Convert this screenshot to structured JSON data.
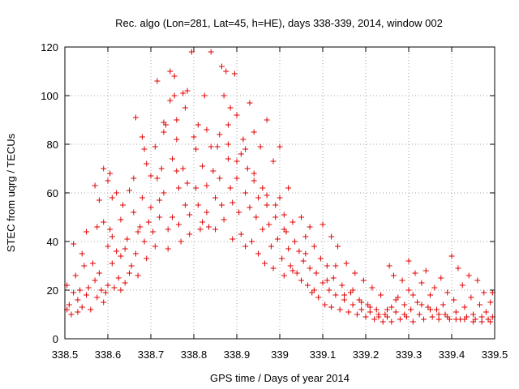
{
  "chart_data": {
    "type": "scatter",
    "title": "Rec. algo (Lon=281, Lat=45, h=HE), days 338-339, 2014, window 002",
    "xlabel": "GPS time / Days of year 2014",
    "ylabel": "STEC from uqrg / TECUs",
    "xlim": [
      338.5,
      339.5
    ],
    "ylim": [
      0,
      120
    ],
    "xticks": [
      338.5,
      338.6,
      338.7,
      338.8,
      338.9,
      339.0,
      339.1,
      339.2,
      339.3,
      339.4,
      339.5
    ],
    "xtick_labels": [
      "338.5",
      "338.6",
      "338.7",
      "338.8",
      "338.9",
      "339",
      "339.1",
      "339.2",
      "339.3",
      "339.4",
      "339.5"
    ],
    "yticks": [
      0,
      20,
      40,
      60,
      80,
      100,
      120
    ],
    "ytick_labels": [
      "0",
      "20",
      "40",
      "60",
      "80",
      "100",
      "120"
    ],
    "grid": true,
    "marker": "plus",
    "marker_color": "#e00000",
    "series": [
      {
        "points": [
          [
            338.505,
            22
          ],
          [
            338.505,
            12
          ],
          [
            338.51,
            14
          ],
          [
            338.515,
            10
          ],
          [
            338.52,
            19
          ],
          [
            338.52,
            39
          ],
          [
            338.525,
            26
          ],
          [
            338.53,
            11
          ],
          [
            338.53,
            16
          ],
          [
            338.535,
            20
          ],
          [
            338.54,
            13
          ],
          [
            338.54,
            35
          ],
          [
            338.545,
            30
          ],
          [
            338.55,
            44
          ],
          [
            338.55,
            18
          ],
          [
            338.555,
            21
          ],
          [
            338.56,
            12
          ],
          [
            338.565,
            31
          ],
          [
            338.57,
            24
          ],
          [
            338.575,
            46
          ],
          [
            338.575,
            17
          ],
          [
            338.58,
            27
          ],
          [
            338.585,
            20
          ],
          [
            338.59,
            70
          ],
          [
            338.59,
            15
          ],
          [
            338.595,
            19
          ],
          [
            338.6,
            65
          ],
          [
            338.6,
            38
          ],
          [
            338.6,
            22
          ],
          [
            338.605,
            68
          ],
          [
            338.605,
            45
          ],
          [
            338.61,
            58
          ],
          [
            338.61,
            31
          ],
          [
            338.615,
            21
          ],
          [
            338.62,
            60
          ],
          [
            338.62,
            36
          ],
          [
            338.625,
            25
          ],
          [
            338.63,
            49
          ],
          [
            338.63,
            20
          ],
          [
            338.635,
            55
          ],
          [
            338.64,
            37
          ],
          [
            338.64,
            23
          ],
          [
            338.645,
            41
          ],
          [
            338.65,
            61
          ],
          [
            338.65,
            27
          ],
          [
            338.655,
            30
          ],
          [
            338.66,
            52
          ],
          [
            338.665,
            91
          ],
          [
            338.665,
            35
          ],
          [
            338.67,
            44
          ],
          [
            338.67,
            26
          ],
          [
            338.675,
            46
          ],
          [
            338.68,
            83
          ],
          [
            338.68,
            58
          ],
          [
            338.685,
            78
          ],
          [
            338.685,
            40
          ],
          [
            338.69,
            33
          ],
          [
            338.695,
            48
          ],
          [
            338.7,
            67
          ],
          [
            338.7,
            54
          ],
          [
            338.705,
            44
          ],
          [
            338.71,
            38
          ],
          [
            338.715,
            106
          ],
          [
            338.715,
            66
          ],
          [
            338.72,
            57
          ],
          [
            338.72,
            50
          ],
          [
            338.725,
            70
          ],
          [
            338.73,
            89
          ],
          [
            338.73,
            60
          ],
          [
            338.735,
            88
          ],
          [
            338.74,
            45
          ],
          [
            338.74,
            37
          ],
          [
            338.745,
            110
          ],
          [
            338.745,
            98
          ],
          [
            338.75,
            74
          ],
          [
            338.75,
            50
          ],
          [
            338.755,
            108
          ],
          [
            338.755,
            100
          ],
          [
            338.76,
            82
          ],
          [
            338.76,
            69
          ],
          [
            338.765,
            62
          ],
          [
            338.765,
            47
          ],
          [
            338.77,
            40
          ],
          [
            338.775,
            101
          ],
          [
            338.775,
            70
          ],
          [
            338.78,
            55
          ],
          [
            338.785,
            102
          ],
          [
            338.785,
            64
          ],
          [
            338.79,
            51
          ],
          [
            338.79,
            43
          ],
          [
            338.795,
            118
          ],
          [
            338.8,
            83
          ],
          [
            338.805,
            78
          ],
          [
            338.805,
            62
          ],
          [
            338.81,
            55
          ],
          [
            338.815,
            45
          ],
          [
            338.82,
            71
          ],
          [
            338.82,
            48
          ],
          [
            338.825,
            100
          ],
          [
            338.83,
            63
          ],
          [
            338.83,
            52
          ],
          [
            338.835,
            46
          ],
          [
            338.84,
            118
          ],
          [
            338.84,
            79
          ],
          [
            338.845,
            69
          ],
          [
            338.85,
            58
          ],
          [
            338.85,
            45
          ],
          [
            338.855,
            79
          ],
          [
            338.86,
            66
          ],
          [
            338.865,
            112
          ],
          [
            338.865,
            55
          ],
          [
            338.87,
            100
          ],
          [
            338.87,
            49
          ],
          [
            338.875,
            110
          ],
          [
            338.88,
            88
          ],
          [
            338.88,
            74
          ],
          [
            338.885,
            95
          ],
          [
            338.885,
            62
          ],
          [
            338.89,
            56
          ],
          [
            338.89,
            41
          ],
          [
            338.895,
            109
          ],
          [
            338.9,
            92
          ],
          [
            338.9,
            66
          ],
          [
            338.905,
            52
          ],
          [
            338.91,
            76
          ],
          [
            338.91,
            43
          ],
          [
            338.915,
            82
          ],
          [
            338.92,
            60
          ],
          [
            338.92,
            38
          ],
          [
            338.925,
            70
          ],
          [
            338.93,
            54
          ],
          [
            338.93,
            97
          ],
          [
            338.935,
            40
          ],
          [
            338.94,
            65
          ],
          [
            338.94,
            85
          ],
          [
            338.945,
            50
          ],
          [
            338.95,
            58
          ],
          [
            338.95,
            35
          ],
          [
            338.955,
            79
          ],
          [
            338.96,
            62
          ],
          [
            338.96,
            45
          ],
          [
            338.965,
            31
          ],
          [
            338.97,
            90
          ],
          [
            338.97,
            55
          ],
          [
            338.975,
            47
          ],
          [
            338.98,
            38
          ],
          [
            338.985,
            73
          ],
          [
            338.985,
            29
          ],
          [
            338.99,
            55
          ],
          [
            338.995,
            41
          ],
          [
            339.0,
            79
          ],
          [
            339.0,
            58
          ],
          [
            339.005,
            33
          ],
          [
            339.01,
            51
          ],
          [
            339.01,
            26
          ],
          [
            339.015,
            44
          ],
          [
            339.02,
            62
          ],
          [
            339.02,
            37
          ],
          [
            339.025,
            30
          ],
          [
            339.03,
            48
          ],
          [
            339.035,
            40
          ],
          [
            339.04,
            27
          ],
          [
            339.045,
            36
          ],
          [
            339.05,
            50
          ],
          [
            339.05,
            24
          ],
          [
            339.055,
            32
          ],
          [
            339.06,
            42
          ],
          [
            339.065,
            22
          ],
          [
            339.07,
            29
          ],
          [
            339.07,
            46
          ],
          [
            339.075,
            19
          ],
          [
            339.08,
            38
          ],
          [
            339.085,
            27
          ],
          [
            339.09,
            17
          ],
          [
            339.095,
            33
          ],
          [
            339.1,
            47
          ],
          [
            339.1,
            23
          ],
          [
            339.105,
            14
          ],
          [
            339.11,
            30
          ],
          [
            339.115,
            20
          ],
          [
            339.12,
            42
          ],
          [
            339.12,
            13
          ],
          [
            339.125,
            25
          ],
          [
            339.13,
            18
          ],
          [
            339.135,
            38
          ],
          [
            339.14,
            12
          ],
          [
            339.145,
            22
          ],
          [
            339.15,
            16
          ],
          [
            339.155,
            31
          ],
          [
            339.16,
            11
          ],
          [
            339.165,
            19
          ],
          [
            339.17,
            14
          ],
          [
            339.175,
            27
          ],
          [
            339.18,
            10
          ],
          [
            339.185,
            16
          ],
          [
            339.19,
            12
          ],
          [
            339.195,
            24
          ],
          [
            339.2,
            9
          ],
          [
            339.205,
            14
          ],
          [
            339.21,
            11
          ],
          [
            339.215,
            21
          ],
          [
            339.22,
            8
          ],
          [
            339.225,
            12
          ],
          [
            339.23,
            10
          ],
          [
            339.235,
            18
          ],
          [
            339.24,
            7
          ],
          [
            339.245,
            10
          ],
          [
            339.25,
            9
          ],
          [
            339.255,
            30
          ],
          [
            339.26,
            13
          ],
          [
            339.26,
            7
          ],
          [
            339.265,
            26
          ],
          [
            339.27,
            11
          ],
          [
            339.275,
            17
          ],
          [
            339.28,
            8
          ],
          [
            339.285,
            24
          ],
          [
            339.29,
            14
          ],
          [
            339.295,
            9
          ],
          [
            339.3,
            32
          ],
          [
            339.3,
            20
          ],
          [
            339.305,
            12
          ],
          [
            339.31,
            7
          ],
          [
            339.315,
            27
          ],
          [
            339.32,
            15
          ],
          [
            339.325,
            10
          ],
          [
            339.33,
            23
          ],
          [
            339.335,
            8
          ],
          [
            339.34,
            28
          ],
          [
            339.345,
            13
          ],
          [
            339.35,
            18
          ],
          [
            339.355,
            9
          ],
          [
            339.36,
            21
          ],
          [
            339.365,
            12
          ],
          [
            339.37,
            8
          ],
          [
            339.375,
            25
          ],
          [
            339.38,
            14
          ],
          [
            339.385,
            10
          ],
          [
            339.39,
            19
          ],
          [
            339.395,
            8
          ],
          [
            339.4,
            34
          ],
          [
            339.405,
            16
          ],
          [
            339.41,
            11
          ],
          [
            339.415,
            29
          ],
          [
            339.42,
            8
          ],
          [
            339.425,
            22
          ],
          [
            339.43,
            13
          ],
          [
            339.435,
            9
          ],
          [
            339.44,
            26
          ],
          [
            339.445,
            17
          ],
          [
            339.45,
            10
          ],
          [
            339.455,
            8
          ],
          [
            339.46,
            24
          ],
          [
            339.465,
            14
          ],
          [
            339.47,
            9
          ],
          [
            339.475,
            19
          ],
          [
            339.48,
            11
          ],
          [
            339.485,
            8
          ],
          [
            339.49,
            15
          ],
          [
            339.495,
            19
          ],
          [
            339.495,
            9
          ],
          [
            338.57,
            63
          ],
          [
            338.58,
            57
          ],
          [
            338.59,
            48
          ],
          [
            338.61,
            42
          ],
          [
            338.63,
            34
          ],
          [
            338.66,
            66
          ],
          [
            338.69,
            72
          ],
          [
            338.71,
            79
          ],
          [
            338.73,
            85
          ],
          [
            338.76,
            90
          ],
          [
            338.78,
            95
          ],
          [
            338.81,
            88
          ],
          [
            338.83,
            86
          ],
          [
            338.86,
            84
          ],
          [
            338.88,
            80
          ],
          [
            338.9,
            73
          ],
          [
            338.92,
            78
          ],
          [
            338.94,
            68
          ],
          [
            338.97,
            59
          ],
          [
            338.99,
            50
          ],
          [
            339.01,
            45
          ],
          [
            339.03,
            28
          ],
          [
            339.06,
            35
          ],
          [
            339.08,
            20
          ],
          [
            339.11,
            24
          ],
          [
            339.13,
            30
          ],
          [
            339.15,
            18
          ],
          [
            339.17,
            20
          ],
          [
            339.19,
            15
          ],
          [
            339.21,
            13
          ],
          [
            339.23,
            9
          ],
          [
            339.25,
            12
          ],
          [
            339.27,
            16
          ],
          [
            339.29,
            10
          ],
          [
            339.31,
            18
          ],
          [
            339.33,
            14
          ],
          [
            339.35,
            12
          ],
          [
            339.37,
            10
          ],
          [
            339.39,
            9
          ],
          [
            339.41,
            8
          ],
          [
            339.43,
            8
          ],
          [
            339.45,
            7
          ],
          [
            339.47,
            7
          ],
          [
            339.49,
            7
          ]
        ]
      }
    ]
  }
}
